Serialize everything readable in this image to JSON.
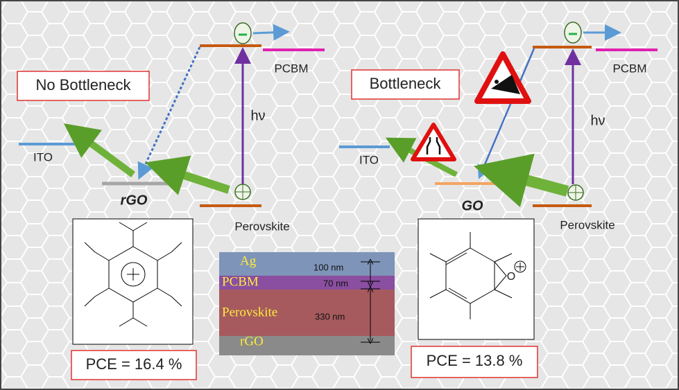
{
  "left_panel": {
    "label": "No Bottleneck",
    "ito": "ITO",
    "interlayer": "rGO",
    "pcbm": "PCBM",
    "photon": "hν",
    "perovskite": "Perovskite",
    "pce": "PCE = 16.4 %"
  },
  "right_panel": {
    "label": "Bottleneck",
    "ito": "ITO",
    "interlayer": "GO",
    "pcbm": "PCBM",
    "photon": "hν",
    "perovskite": "Perovskite",
    "pce": "PCE = 13.8 %"
  },
  "sem_image": {
    "layers": [
      "Ag",
      "PCBM",
      "Perovskite",
      "rGO"
    ],
    "thicknesses": [
      "100 nm",
      "70 nm",
      "330 nm"
    ]
  }
}
